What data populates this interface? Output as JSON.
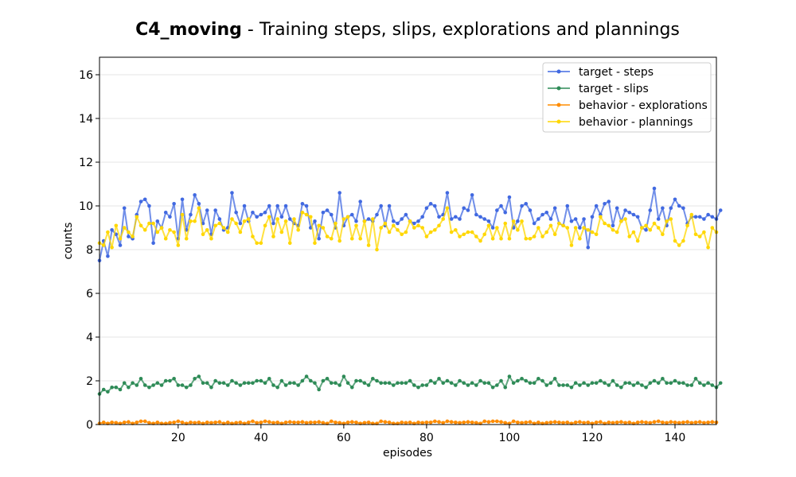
{
  "chart_data": {
    "type": "line",
    "title_bold": "C4_moving",
    "title_rest": " - Training steps, slips, explorations and plannings",
    "xlabel": "episodes",
    "ylabel": "counts",
    "xlim": [
      1,
      150
    ],
    "ylim": [
      0,
      16.8
    ],
    "xticks": [
      20,
      40,
      60,
      80,
      100,
      120,
      140
    ],
    "yticks": [
      0,
      2,
      4,
      6,
      8,
      10,
      12,
      14,
      16
    ],
    "grid": "horizontal",
    "legend_position": "top-right",
    "series": [
      {
        "name": "target - steps",
        "color": "#4169e1",
        "values": [
          7.5,
          8.4,
          7.7,
          8.9,
          8.7,
          8.2,
          9.9,
          8.6,
          8.5,
          9.6,
          10.2,
          10.3,
          10.0,
          8.3,
          9.3,
          9.0,
          9.7,
          9.5,
          10.1,
          8.5,
          10.3,
          8.9,
          9.6,
          10.5,
          10.1,
          9.2,
          9.8,
          8.7,
          9.8,
          9.4,
          8.9,
          9.0,
          10.6,
          9.7,
          9.2,
          10.0,
          9.3,
          9.7,
          9.5,
          9.6,
          9.7,
          10.0,
          9.2,
          10.0,
          9.5,
          10.0,
          9.4,
          9.2,
          9.1,
          10.1,
          10.0,
          9.0,
          9.3,
          8.5,
          9.7,
          9.8,
          9.6,
          9.0,
          10.6,
          9.1,
          9.5,
          9.6,
          9.3,
          10.2,
          9.3,
          9.4,
          9.3,
          9.6,
          10.0,
          9.1,
          10.0,
          9.3,
          9.2,
          9.4,
          9.6,
          9.3,
          9.2,
          9.3,
          9.5,
          9.9,
          10.1,
          10.0,
          9.5,
          9.6,
          10.6,
          9.4,
          9.5,
          9.4,
          9.9,
          9.8,
          10.5,
          9.6,
          9.5,
          9.4,
          9.3,
          9.0,
          9.8,
          10.0,
          9.7,
          10.4,
          9.0,
          9.3,
          10.0,
          10.1,
          9.8,
          9.2,
          9.4,
          9.6,
          9.7,
          9.4,
          9.9,
          9.2,
          9.1,
          10.0,
          9.3,
          9.4,
          9.0,
          9.4,
          8.1,
          9.5,
          10.0,
          9.6,
          10.1,
          10.2,
          9.1,
          9.9,
          9.3,
          9.8,
          9.7,
          9.6,
          9.5,
          9.0,
          8.9,
          9.8,
          10.8,
          9.4,
          9.9,
          9.1,
          9.9,
          10.3,
          10.0,
          9.9,
          9.2,
          9.5,
          9.5,
          9.5,
          9.4,
          9.6,
          9.5,
          9.4,
          9.8
        ]
      },
      {
        "name": "target - slips",
        "color": "#2e8b57",
        "values": [
          1.4,
          1.6,
          1.5,
          1.7,
          1.7,
          1.6,
          1.9,
          1.7,
          1.9,
          1.8,
          2.1,
          1.8,
          1.7,
          1.8,
          1.9,
          1.8,
          2.0,
          2.0,
          2.1,
          1.8,
          1.8,
          1.7,
          1.8,
          2.1,
          2.2,
          1.9,
          1.9,
          1.7,
          2.0,
          1.9,
          1.9,
          1.8,
          2.0,
          1.9,
          1.8,
          1.9,
          1.9,
          1.9,
          2.0,
          2.0,
          1.9,
          2.1,
          1.8,
          1.7,
          2.0,
          1.8,
          1.9,
          1.9,
          1.8,
          2.0,
          2.2,
          2.0,
          1.9,
          1.6,
          2.0,
          2.1,
          1.9,
          1.9,
          1.8,
          2.2,
          1.9,
          1.7,
          2.0,
          2.0,
          1.9,
          1.8,
          2.1,
          2.0,
          1.9,
          1.9,
          1.9,
          1.8,
          1.9,
          1.9,
          1.9,
          2.0,
          1.8,
          1.7,
          1.8,
          1.8,
          2.0,
          1.9,
          2.1,
          1.9,
          2.0,
          1.9,
          1.8,
          2.0,
          1.9,
          1.8,
          1.9,
          1.8,
          2.0,
          1.9,
          1.9,
          1.7,
          1.8,
          2.0,
          1.7,
          2.2,
          1.9,
          2.0,
          2.1,
          2.0,
          1.9,
          1.9,
          2.1,
          2.0,
          1.8,
          1.9,
          2.1,
          1.8,
          1.8,
          1.8,
          1.7,
          1.9,
          1.8,
          1.9,
          1.8,
          1.9,
          1.9,
          2.0,
          1.9,
          1.8,
          2.0,
          1.8,
          1.7,
          1.9,
          1.9,
          1.8,
          1.9,
          1.8,
          1.7,
          1.9,
          2.0,
          1.9,
          2.1,
          1.9,
          1.9,
          2.0,
          1.9,
          1.9,
          1.8,
          1.8,
          2.1,
          1.9,
          1.8,
          1.9,
          1.8,
          1.7,
          1.9
        ]
      },
      {
        "name": "behavior - explorations",
        "color": "#ff8c00",
        "values": [
          0.05,
          0.1,
          0.05,
          0.1,
          0.08,
          0.05,
          0.1,
          0.12,
          0.05,
          0.1,
          0.15,
          0.15,
          0.08,
          0.05,
          0.1,
          0.05,
          0.05,
          0.08,
          0.1,
          0.15,
          0.1,
          0.05,
          0.1,
          0.08,
          0.1,
          0.05,
          0.1,
          0.08,
          0.1,
          0.12,
          0.05,
          0.1,
          0.05,
          0.08,
          0.1,
          0.05,
          0.1,
          0.15,
          0.08,
          0.1,
          0.15,
          0.12,
          0.08,
          0.1,
          0.05,
          0.1,
          0.12,
          0.1,
          0.1,
          0.12,
          0.08,
          0.1,
          0.1,
          0.12,
          0.08,
          0.05,
          0.15,
          0.1,
          0.08,
          0.05,
          0.1,
          0.12,
          0.1,
          0.05,
          0.08,
          0.1,
          0.05,
          0.05,
          0.15,
          0.12,
          0.1,
          0.05,
          0.05,
          0.1,
          0.08,
          0.1,
          0.05,
          0.1,
          0.08,
          0.1,
          0.1,
          0.15,
          0.12,
          0.08,
          0.15,
          0.12,
          0.1,
          0.08,
          0.1,
          0.12,
          0.1,
          0.08,
          0.05,
          0.15,
          0.12,
          0.15,
          0.15,
          0.12,
          0.08,
          0.05,
          0.15,
          0.1,
          0.08,
          0.1,
          0.12,
          0.05,
          0.1,
          0.05,
          0.08,
          0.1,
          0.12,
          0.1,
          0.08,
          0.1,
          0.05,
          0.1,
          0.12,
          0.08,
          0.1,
          0.05,
          0.1,
          0.12,
          0.05,
          0.1,
          0.08,
          0.1,
          0.12,
          0.08,
          0.1,
          0.05,
          0.1,
          0.12,
          0.1,
          0.08,
          0.12,
          0.15,
          0.1,
          0.08,
          0.12,
          0.1,
          0.08,
          0.1,
          0.12,
          0.08,
          0.1,
          0.12,
          0.08,
          0.1,
          0.12,
          0.1
        ]
      },
      {
        "name": "behavior - plannings",
        "color": "#ffd700",
        "values": [
          8.3,
          8.2,
          8.8,
          8.1,
          9.1,
          8.5,
          9.0,
          8.8,
          8.6,
          9.5,
          9.1,
          8.9,
          9.2,
          9.2,
          8.8,
          9.0,
          8.5,
          8.9,
          8.8,
          8.2,
          9.6,
          8.5,
          9.3,
          9.3,
          9.9,
          8.7,
          8.9,
          8.5,
          9.1,
          9.2,
          9.0,
          8.8,
          9.4,
          9.2,
          8.8,
          9.3,
          9.4,
          8.6,
          8.3,
          8.3,
          9.1,
          9.5,
          8.6,
          9.4,
          8.8,
          9.3,
          8.3,
          9.4,
          8.9,
          9.7,
          9.6,
          9.5,
          8.3,
          9.1,
          9.0,
          8.6,
          8.5,
          9.2,
          8.4,
          9.4,
          9.5,
          8.5,
          9.1,
          8.5,
          9.3,
          8.2,
          9.4,
          8.0,
          9.0,
          9.2,
          8.8,
          9.1,
          8.9,
          8.7,
          8.8,
          9.3,
          9.0,
          9.1,
          9.0,
          8.6,
          8.8,
          8.9,
          9.1,
          9.4,
          9.9,
          8.8,
          8.9,
          8.6,
          8.7,
          8.8,
          8.8,
          8.6,
          8.4,
          8.7,
          9.1,
          8.5,
          9.0,
          8.5,
          9.2,
          8.5,
          9.3,
          8.9,
          9.3,
          8.5,
          8.5,
          8.6,
          9.0,
          8.6,
          8.8,
          9.1,
          8.7,
          9.2,
          9.1,
          9.0,
          8.2,
          9.0,
          8.5,
          9.0,
          8.9,
          8.8,
          8.7,
          9.5,
          9.2,
          9.1,
          8.9,
          8.8,
          9.3,
          9.4,
          8.6,
          8.8,
          8.4,
          9.0,
          9.1,
          8.9,
          9.2,
          9.0,
          8.7,
          9.3,
          9.4,
          8.4,
          8.2,
          8.4,
          9.1,
          9.6,
          8.7,
          8.6,
          8.8,
          8.1,
          9.0,
          8.8
        ]
      }
    ]
  }
}
